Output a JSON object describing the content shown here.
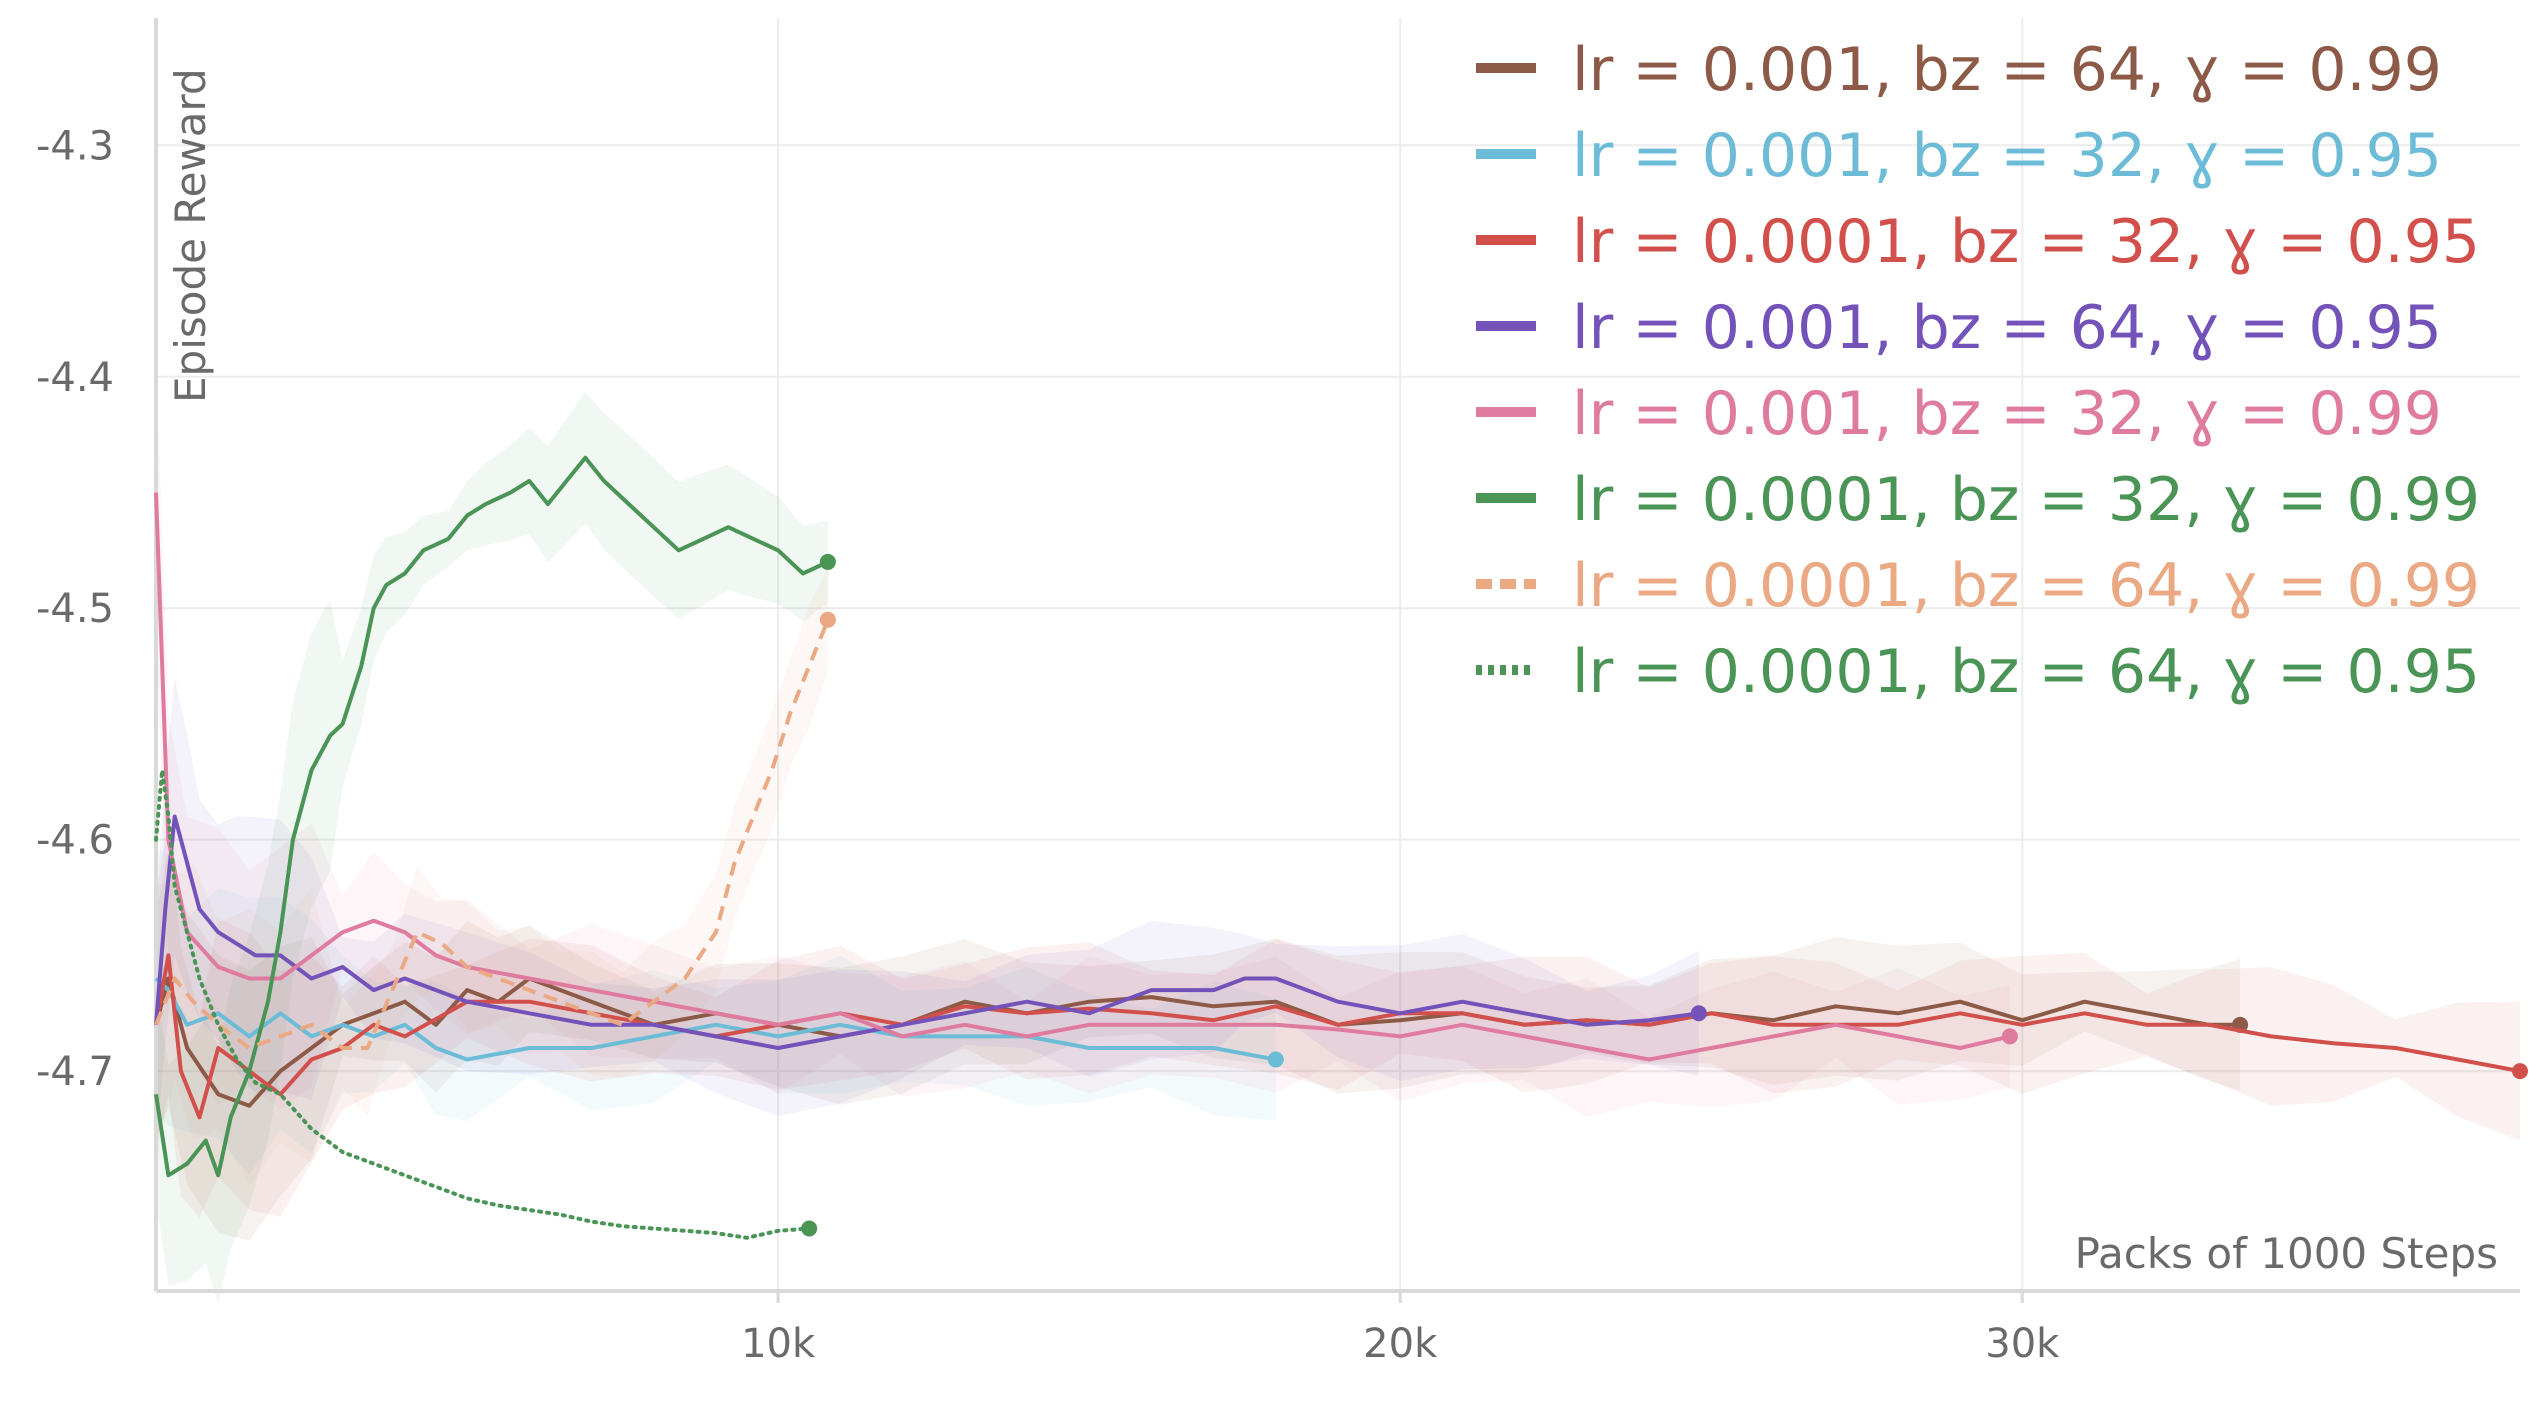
{
  "chart_data": {
    "type": "line",
    "title": "",
    "xlabel": "Packs of 1000 Steps",
    "ylabel": "Episode Reward",
    "xlim": [
      0,
      38000
    ],
    "ylim": [
      -4.795,
      -4.245
    ],
    "x_ticks": [
      10000,
      20000,
      30000
    ],
    "x_tick_labels": [
      "10k",
      "20k",
      "30k"
    ],
    "y_ticks": [
      -4.3,
      -4.4,
      -4.5,
      -4.6,
      -4.7
    ],
    "y_tick_labels": [
      "-4.3",
      "-4.4",
      "-4.5",
      "-4.6",
      "-4.7"
    ],
    "grid": true,
    "legend_position": "top-right",
    "series": [
      {
        "name": "lr = 0.001, bz = 64, ɣ = 0.99",
        "color": "#8c5a46",
        "dash": "solid",
        "x": [
          0,
          200,
          500,
          1000,
          1500,
          2000,
          2500,
          3000,
          3500,
          4000,
          4500,
          5000,
          5500,
          6000,
          7000,
          8000,
          9000,
          10000,
          11000,
          12000,
          13000,
          14000,
          15000,
          16000,
          17000,
          18000,
          19000,
          20000,
          21000,
          22000,
          23000,
          24000,
          25000,
          26000,
          27000,
          28000,
          29000,
          30000,
          31000,
          32000,
          33000,
          33500
        ],
        "y": [
          -4.68,
          -4.66,
          -4.69,
          -4.71,
          -4.715,
          -4.7,
          -4.69,
          -4.68,
          -4.675,
          -4.67,
          -4.68,
          -4.665,
          -4.67,
          -4.66,
          -4.67,
          -4.68,
          -4.675,
          -4.68,
          -4.685,
          -4.68,
          -4.67,
          -4.675,
          -4.67,
          -4.668,
          -4.672,
          -4.67,
          -4.68,
          -4.678,
          -4.675,
          -4.68,
          -4.678,
          -4.68,
          -4.675,
          -4.678,
          -4.672,
          -4.675,
          -4.67,
          -4.678,
          -4.67,
          -4.675,
          -4.68,
          -4.68
        ]
      },
      {
        "name": "lr = 0.001, bz = 32, ɣ = 0.95",
        "color": "#6cbcd8",
        "dash": "solid",
        "x": [
          0,
          200,
          500,
          1000,
          1500,
          2000,
          2500,
          3000,
          3500,
          4000,
          4500,
          5000,
          6000,
          7000,
          8000,
          9000,
          10000,
          11000,
          12000,
          13000,
          14000,
          15000,
          16000,
          17000,
          18000
        ],
        "y": [
          -4.66,
          -4.665,
          -4.68,
          -4.675,
          -4.685,
          -4.675,
          -4.685,
          -4.68,
          -4.685,
          -4.68,
          -4.69,
          -4.695,
          -4.69,
          -4.69,
          -4.685,
          -4.68,
          -4.685,
          -4.68,
          -4.685,
          -4.685,
          -4.685,
          -4.69,
          -4.69,
          -4.69,
          -4.695
        ]
      },
      {
        "name": "lr = 0.0001, bz = 32, ɣ = 0.95",
        "color": "#d2504c",
        "dash": "solid",
        "x": [
          0,
          200,
          400,
          700,
          1000,
          1500,
          2000,
          2500,
          3000,
          3500,
          4000,
          5000,
          6000,
          7000,
          8000,
          9000,
          10000,
          11000,
          12000,
          13000,
          14000,
          15000,
          16000,
          17000,
          18000,
          19000,
          20000,
          21000,
          22000,
          23000,
          24000,
          25000,
          26000,
          27000,
          28000,
          29000,
          30000,
          31000,
          32000,
          33000,
          34000,
          35000,
          36000,
          37000,
          38000
        ],
        "y": [
          -4.68,
          -4.65,
          -4.7,
          -4.72,
          -4.69,
          -4.7,
          -4.71,
          -4.695,
          -4.69,
          -4.68,
          -4.685,
          -4.67,
          -4.67,
          -4.675,
          -4.68,
          -4.685,
          -4.68,
          -4.675,
          -4.68,
          -4.672,
          -4.675,
          -4.673,
          -4.675,
          -4.678,
          -4.672,
          -4.68,
          -4.675,
          -4.675,
          -4.68,
          -4.678,
          -4.68,
          -4.675,
          -4.68,
          -4.68,
          -4.68,
          -4.675,
          -4.68,
          -4.675,
          -4.68,
          -4.68,
          -4.685,
          -4.688,
          -4.69,
          -4.695,
          -4.7
        ]
      },
      {
        "name": "lr = 0.001, bz = 64, ɣ = 0.95",
        "color": "#7353b9",
        "dash": "solid",
        "x": [
          0,
          150,
          300,
          500,
          700,
          1000,
          1300,
          1600,
          2000,
          2500,
          3000,
          3500,
          4000,
          5000,
          6000,
          7000,
          8000,
          9000,
          10000,
          11000,
          12000,
          13000,
          14000,
          15000,
          16000,
          17000,
          17500,
          18000,
          19000,
          20000,
          21000,
          22000,
          23000,
          24000,
          24800
        ],
        "y": [
          -4.68,
          -4.63,
          -4.59,
          -4.61,
          -4.63,
          -4.64,
          -4.645,
          -4.65,
          -4.65,
          -4.66,
          -4.655,
          -4.665,
          -4.66,
          -4.67,
          -4.675,
          -4.68,
          -4.68,
          -4.685,
          -4.69,
          -4.685,
          -4.68,
          -4.675,
          -4.67,
          -4.675,
          -4.665,
          -4.665,
          -4.66,
          -4.66,
          -4.67,
          -4.675,
          -4.67,
          -4.675,
          -4.68,
          -4.678,
          -4.675
        ]
      },
      {
        "name": "lr = 0.001, bz = 32, ɣ = 0.99",
        "color": "#e07ba0",
        "dash": "solid",
        "x": [
          0,
          200,
          500,
          1000,
          1500,
          2000,
          2500,
          3000,
          3500,
          4000,
          4500,
          5000,
          6000,
          7000,
          8000,
          9000,
          10000,
          11000,
          12000,
          13000,
          14000,
          15000,
          16000,
          17000,
          18000,
          19000,
          20000,
          21000,
          22000,
          23000,
          24000,
          25000,
          26000,
          27000,
          28000,
          29000,
          29800
        ],
        "y": [
          -4.45,
          -4.6,
          -4.64,
          -4.655,
          -4.66,
          -4.66,
          -4.65,
          -4.64,
          -4.635,
          -4.64,
          -4.65,
          -4.655,
          -4.66,
          -4.665,
          -4.67,
          -4.675,
          -4.68,
          -4.675,
          -4.685,
          -4.68,
          -4.685,
          -4.68,
          -4.68,
          -4.68,
          -4.68,
          -4.682,
          -4.685,
          -4.68,
          -4.685,
          -4.69,
          -4.695,
          -4.69,
          -4.685,
          -4.68,
          -4.685,
          -4.69,
          -4.685
        ]
      },
      {
        "name": "lr = 0.0001, bz = 32, ɣ = 0.99",
        "color": "#4a9456",
        "dash": "solid",
        "x": [
          0,
          200,
          500,
          800,
          1000,
          1200,
          1500,
          1800,
          2000,
          2200,
          2500,
          2800,
          3000,
          3300,
          3500,
          3700,
          4000,
          4300,
          4700,
          5000,
          5300,
          5700,
          6000,
          6300,
          6600,
          6900,
          7200,
          7600,
          8000,
          8400,
          8800,
          9200,
          9600,
          10000,
          10400,
          10800
        ],
        "y": [
          -4.71,
          -4.745,
          -4.74,
          -4.73,
          -4.745,
          -4.72,
          -4.7,
          -4.67,
          -4.64,
          -4.6,
          -4.57,
          -4.555,
          -4.55,
          -4.525,
          -4.5,
          -4.49,
          -4.485,
          -4.475,
          -4.47,
          -4.46,
          -4.455,
          -4.45,
          -4.445,
          -4.455,
          -4.445,
          -4.435,
          -4.445,
          -4.455,
          -4.465,
          -4.475,
          -4.47,
          -4.465,
          -4.47,
          -4.475,
          -4.485,
          -4.48
        ]
      },
      {
        "name": "lr = 0.0001, bz = 64, ɣ = 0.99",
        "color": "#eba983",
        "dash": "dashed",
        "x": [
          0,
          300,
          600,
          1000,
          1500,
          2000,
          2500,
          3000,
          3400,
          3800,
          4200,
          4600,
          5000,
          5500,
          6000,
          6500,
          7000,
          7500,
          8000,
          8500,
          9000,
          9300,
          9600,
          9900,
          10200,
          10500,
          10800
        ],
        "y": [
          -4.68,
          -4.66,
          -4.67,
          -4.68,
          -4.69,
          -4.685,
          -4.68,
          -4.69,
          -4.69,
          -4.665,
          -4.64,
          -4.645,
          -4.655,
          -4.66,
          -4.665,
          -4.67,
          -4.675,
          -4.68,
          -4.67,
          -4.66,
          -4.64,
          -4.61,
          -4.59,
          -4.57,
          -4.545,
          -4.525,
          -4.505
        ]
      },
      {
        "name": "lr = 0.0001, bz = 64, ɣ = 0.95",
        "color": "#4a9456",
        "dash": "dotted",
        "x": [
          0,
          100,
          200,
          300,
          500,
          700,
          1000,
          1300,
          1600,
          2000,
          2500,
          3000,
          3500,
          4000,
          4500,
          5000,
          5500,
          6000,
          6500,
          7000,
          7500,
          8000,
          8500,
          9000,
          9500,
          10000,
          10500
        ],
        "y": [
          -4.6,
          -4.57,
          -4.59,
          -4.62,
          -4.64,
          -4.66,
          -4.68,
          -4.695,
          -4.705,
          -4.71,
          -4.725,
          -4.735,
          -4.74,
          -4.745,
          -4.75,
          -4.755,
          -4.758,
          -4.76,
          -4.762,
          -4.765,
          -4.767,
          -4.768,
          -4.769,
          -4.77,
          -4.772,
          -4.769,
          -4.768
        ]
      }
    ]
  }
}
